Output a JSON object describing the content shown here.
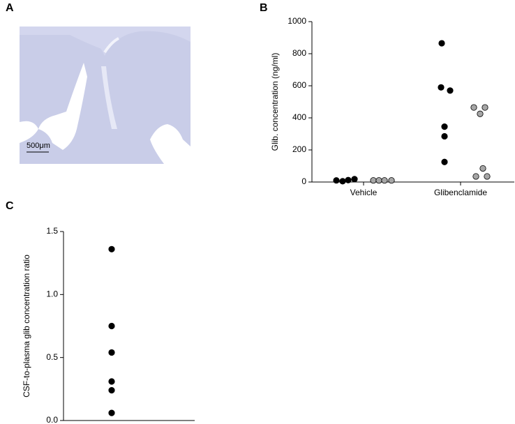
{
  "image_panel": {
    "label": "A",
    "scale_bar": "500μm"
  },
  "chart_data": [
    {
      "type": "scatter",
      "panel": "B",
      "y_label": "Glib. concentration (ng/ml)",
      "categories": [
        "Vehicle",
        "Glibenclamide"
      ],
      "ylim": [
        0,
        1000
      ],
      "yticks": [
        0,
        200,
        400,
        600,
        800,
        1000
      ],
      "series": [
        {
          "color": "#000000",
          "values": [
            [
              10,
              5,
              12,
              18
            ],
            [
              865,
              590,
              570,
              345,
              285,
              125
            ]
          ]
        },
        {
          "color": "#a6a6a6",
          "values": [
            [
              10,
              10,
              10,
              10
            ],
            [
              465,
              465,
              425,
              85,
              35,
              35
            ]
          ]
        }
      ]
    },
    {
      "type": "scatter",
      "panel": "C",
      "y_label": "CSF-to-plasma glib concentration ratio",
      "ylim": [
        0,
        1.5
      ],
      "yticks": [
        {
          "value": 0,
          "label": "0.0"
        },
        0.5,
        {
          "value": 1,
          "label": "1.0"
        },
        1.5
      ],
      "series": [
        {
          "color": "#000000",
          "values": [
            1.36,
            0.75,
            0.54,
            0.31,
            0.24,
            0.06
          ]
        }
      ]
    }
  ]
}
